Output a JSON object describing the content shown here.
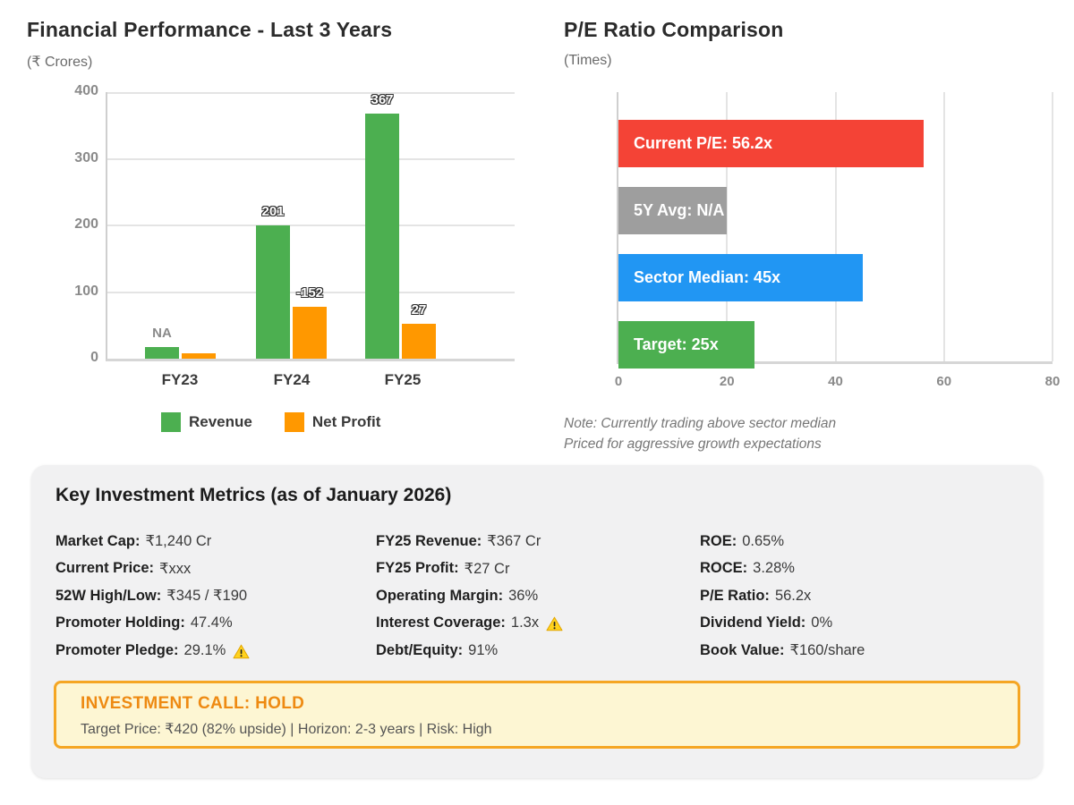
{
  "chart_data": [
    {
      "type": "bar",
      "title": "Financial Performance - Last 3 Years",
      "subtitle": "(₹ Crores)",
      "categories": [
        "FY23",
        "FY24",
        "FY25"
      ],
      "series": [
        {
          "name": "Revenue",
          "color": "#4CAF50",
          "values": [
            null,
            201,
            367
          ],
          "display_heights": [
            18,
            200,
            368
          ],
          "bar_labels": [
            "NA",
            "201",
            "367"
          ]
        },
        {
          "name": "Net Profit",
          "color": "#FF9800",
          "values": [
            null,
            -152,
            27
          ],
          "display_heights": [
            8,
            78,
            52
          ],
          "bar_labels": [
            "",
            "-152",
            "27"
          ]
        }
      ],
      "ylabel": "",
      "ylim": [
        0,
        400
      ],
      "yticks": [
        0,
        100,
        200,
        300,
        400
      ],
      "grid": "horizontal",
      "legend_position": "bottom"
    },
    {
      "type": "bar-horizontal",
      "title": "P/E Ratio Comparison",
      "subtitle": "(Times)",
      "bars": [
        {
          "label": "Current P/E: 56.2x",
          "value": 56.2,
          "color": "#F44336"
        },
        {
          "label": "5Y Avg: N/A",
          "value": 20,
          "color": "#9E9E9E"
        },
        {
          "label": "Sector Median: 45x",
          "value": 45,
          "color": "#2196F3"
        },
        {
          "label": "Target: 25x",
          "value": 25,
          "color": "#4CAF50"
        }
      ],
      "xlim": [
        0,
        80
      ],
      "xticks": [
        0,
        20,
        40,
        60,
        80
      ],
      "grid": "vertical",
      "note_lines": [
        "Note: Currently trading above sector median",
        "Priced for aggressive growth expectations"
      ]
    }
  ],
  "metrics_card": {
    "heading": "Key Investment Metrics (as of January 2026)",
    "columns": [
      [
        {
          "label": "Market Cap:",
          "value": "₹1,240 Cr"
        },
        {
          "label": "Current Price:",
          "value": "₹xxx"
        },
        {
          "label": "52W High/Low:",
          "value": "₹345 / ₹190"
        },
        {
          "label": "Promoter Holding:",
          "value": "47.4%"
        },
        {
          "label": "Promoter Pledge:",
          "value": "29.1%",
          "warn": true
        }
      ],
      [
        {
          "label": "FY25 Revenue:",
          "value": "₹367 Cr"
        },
        {
          "label": "FY25 Profit:",
          "value": "₹27 Cr"
        },
        {
          "label": "Operating Margin:",
          "value": "36%"
        },
        {
          "label": "Interest Coverage:",
          "value": "1.3x",
          "warn": true
        },
        {
          "label": "Debt/Equity:",
          "value": "91%"
        }
      ],
      [
        {
          "label": "ROE:",
          "value": "0.65%"
        },
        {
          "label": "ROCE:",
          "value": "3.28%"
        },
        {
          "label": "P/E Ratio:",
          "value": "56.2x"
        },
        {
          "label": "Dividend Yield:",
          "value": "0%"
        },
        {
          "label": "Book Value:",
          "value": "₹160/share"
        }
      ]
    ],
    "call_box": {
      "title": "INVESTMENT CALL: HOLD",
      "subtitle": "Target Price: ₹420 (82% upside) | Horizon: 2-3 years | Risk: High"
    }
  },
  "colors": {
    "revenue_green": "#4CAF50",
    "profit_orange": "#FF9800",
    "pe_red": "#F44336",
    "pe_gray": "#9E9E9E",
    "pe_blue": "#2196F3",
    "pe_green": "#4CAF50",
    "call_border_orange": "#F5A623",
    "call_bg_yellow": "#FDF6D3",
    "warning_yellow": "#FFD21E"
  }
}
